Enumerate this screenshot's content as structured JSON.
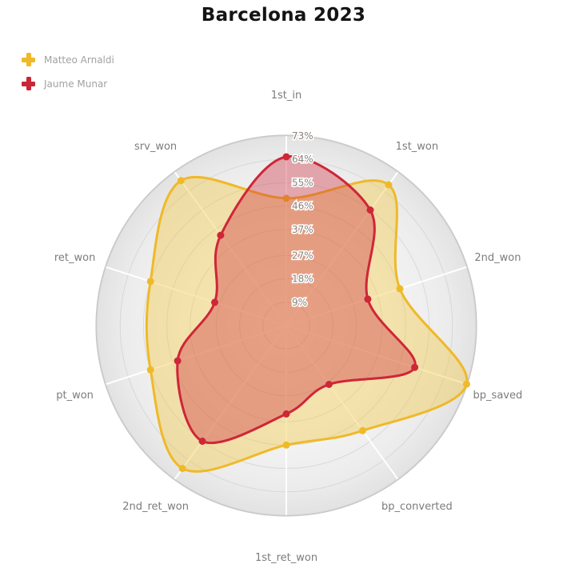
{
  "title": "Barcelona 2023",
  "legend": {
    "items": [
      {
        "label": "Matteo Arnaldi",
        "color": "#efb929"
      },
      {
        "label": "Jaume Munar",
        "color": "#c92638"
      }
    ]
  },
  "chart_data": {
    "type": "radar",
    "title": "Barcelona 2023",
    "categories": [
      "1st_in",
      "1st_won",
      "2nd_won",
      "bp_saved",
      "bp_converted",
      "1st_ret_won",
      "2nd_ret_won",
      "pt_won",
      "ret_won",
      "srv_won"
    ],
    "series": [
      {
        "name": "Matteo Arnaldi",
        "color": "#efb929",
        "fill": "rgba(240,200,70,0.42)",
        "values": [
          49,
          67,
          46,
          73,
          50,
          46,
          68,
          55,
          55,
          69
        ]
      },
      {
        "name": "Jaume Munar",
        "color": "#cf2638",
        "fill": "rgba(205,45,60,0.38)",
        "values": [
          65,
          55,
          33,
          52,
          28,
          34,
          55,
          44,
          29,
          43
        ]
      }
    ],
    "radial_ticks": [
      {
        "value": 9,
        "label": "9%"
      },
      {
        "value": 18,
        "label": "18%"
      },
      {
        "value": 27,
        "label": "27%"
      },
      {
        "value": 37,
        "label": "37%"
      },
      {
        "value": 46,
        "label": "46%"
      },
      {
        "value": 55,
        "label": "55%"
      },
      {
        "value": 64,
        "label": "64%"
      },
      {
        "value": 73,
        "label": "73%"
      }
    ],
    "rmax": 73,
    "units": "%",
    "legend_position": "top-left",
    "grid": {
      "rings": true,
      "spokes": true,
      "ring_line_color": "#c9c9c9",
      "spoke_color": "#ffffff",
      "disk_edge_color": "#c6c6c6",
      "axis_label_color": "#7c7c7c",
      "tick_label_color": "#8a817b"
    }
  }
}
